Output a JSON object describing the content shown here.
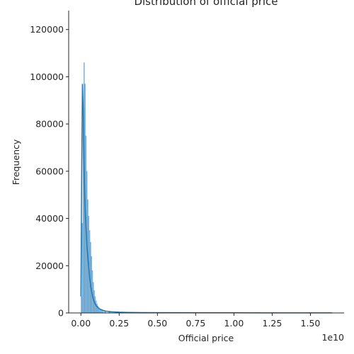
{
  "chart_data": {
    "type": "bar",
    "title": "Distribution of official price",
    "xlabel": "Official price",
    "ylabel": "Frequency",
    "x_offset_label": "1e10",
    "xlim": [
      -0.08,
      1.72
    ],
    "ylim": [
      0,
      128000
    ],
    "x_ticks": [
      0.0,
      0.25,
      0.5,
      0.75,
      1.0,
      1.25,
      1.5
    ],
    "x_tick_labels": [
      "0.00",
      "0.25",
      "0.50",
      "0.75",
      "1.00",
      "1.25",
      "1.50"
    ],
    "y_ticks": [
      0,
      20000,
      40000,
      60000,
      80000,
      100000,
      120000
    ],
    "y_tick_labels": [
      "0",
      "20000",
      "40000",
      "60000",
      "80000",
      "100000",
      "120000"
    ],
    "grid": false,
    "bar_color": "#1f77b4",
    "bars": {
      "x": [
        0.0,
        0.006,
        0.012,
        0.018,
        0.024,
        0.03,
        0.036,
        0.042,
        0.048,
        0.054,
        0.06,
        0.066,
        0.072,
        0.078,
        0.084,
        0.09,
        0.096,
        0.102,
        0.108,
        0.114,
        0.12,
        0.132,
        0.15,
        0.18,
        0.22,
        0.3,
        0.5,
        0.8,
        1.1,
        1.4,
        1.64
      ],
      "values": [
        7000,
        38000,
        85000,
        106000,
        97000,
        75000,
        60000,
        48000,
        41000,
        35000,
        30000,
        24000,
        18000,
        13000,
        9500,
        7000,
        5200,
        3900,
        3000,
        2300,
        1800,
        1300,
        900,
        600,
        350,
        200,
        120,
        80,
        60,
        40,
        30
      ]
    },
    "kde": {
      "x": [
        0.0,
        0.005,
        0.01,
        0.015,
        0.02,
        0.025,
        0.03,
        0.035,
        0.04,
        0.045,
        0.05,
        0.055,
        0.06,
        0.065,
        0.07,
        0.08,
        0.09,
        0.1,
        0.11,
        0.12,
        0.14,
        0.16,
        0.2,
        0.25,
        0.3,
        0.4,
        0.6,
        0.8,
        1.0,
        1.2,
        1.4,
        1.64
      ],
      "values": [
        7000,
        60000,
        97000,
        86000,
        64000,
        49000,
        40000,
        34000,
        28000,
        24000,
        20000,
        16500,
        13500,
        11000,
        9000,
        6000,
        4200,
        3000,
        2300,
        1800,
        1200,
        800,
        500,
        320,
        220,
        150,
        100,
        80,
        60,
        50,
        40,
        20
      ]
    }
  }
}
